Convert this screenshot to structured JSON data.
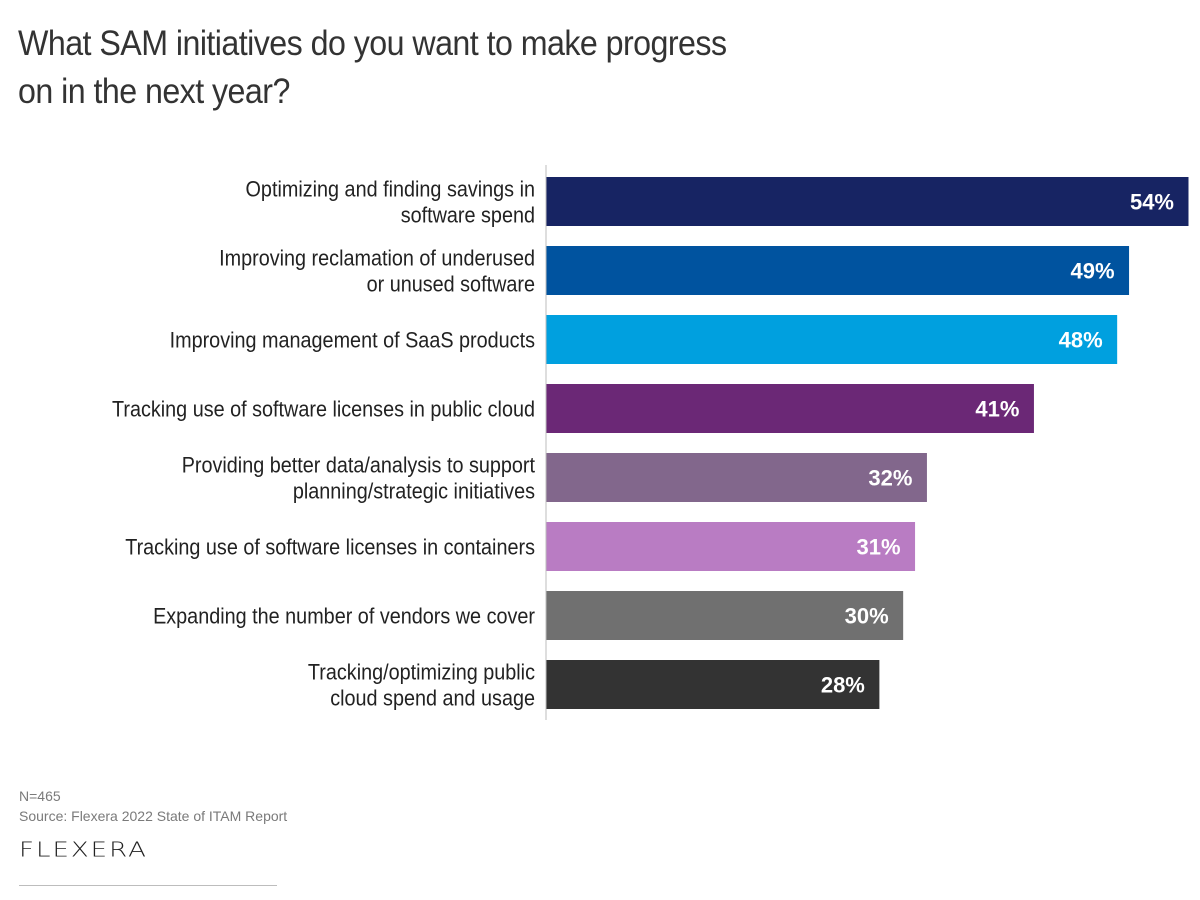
{
  "title_lines": [
    "What SAM initiatives do you want to make progress",
    "on in the next year?"
  ],
  "chart_data": {
    "type": "bar",
    "orientation": "horizontal",
    "title": "What SAM initiatives do you want to make progress on in the next year?",
    "categories": [
      [
        "Optimizing and finding savings in",
        "software spend"
      ],
      [
        "Improving reclamation of underused",
        "or unused software"
      ],
      [
        "Improving management of SaaS products"
      ],
      [
        "Tracking use of software licenses in public cloud"
      ],
      [
        "Providing better data/analysis to support",
        "planning/strategic initiatives"
      ],
      [
        "Tracking use of software licenses in containers"
      ],
      [
        "Expanding the number of vendors we cover"
      ],
      [
        "Tracking/optimizing public",
        "cloud spend and usage"
      ]
    ],
    "values": [
      54,
      49,
      48,
      41,
      32,
      31,
      30,
      28
    ],
    "value_labels": [
      "54%",
      "49%",
      "48%",
      "41%",
      "32%",
      "31%",
      "30%",
      "28%"
    ],
    "colors": [
      "#172463",
      "#00539f",
      "#00a0df",
      "#6b2876",
      "#82678c",
      "#b97cc3",
      "#707070",
      "#333333"
    ],
    "xlim": [
      0,
      54
    ],
    "unit": "%",
    "xlabel": "",
    "ylabel": "",
    "grid": false,
    "legend": "none"
  },
  "footer": {
    "sample": "N=465",
    "source": "Source: Flexera 2022 State of ITAM Report",
    "logo": "FLEXERA"
  }
}
